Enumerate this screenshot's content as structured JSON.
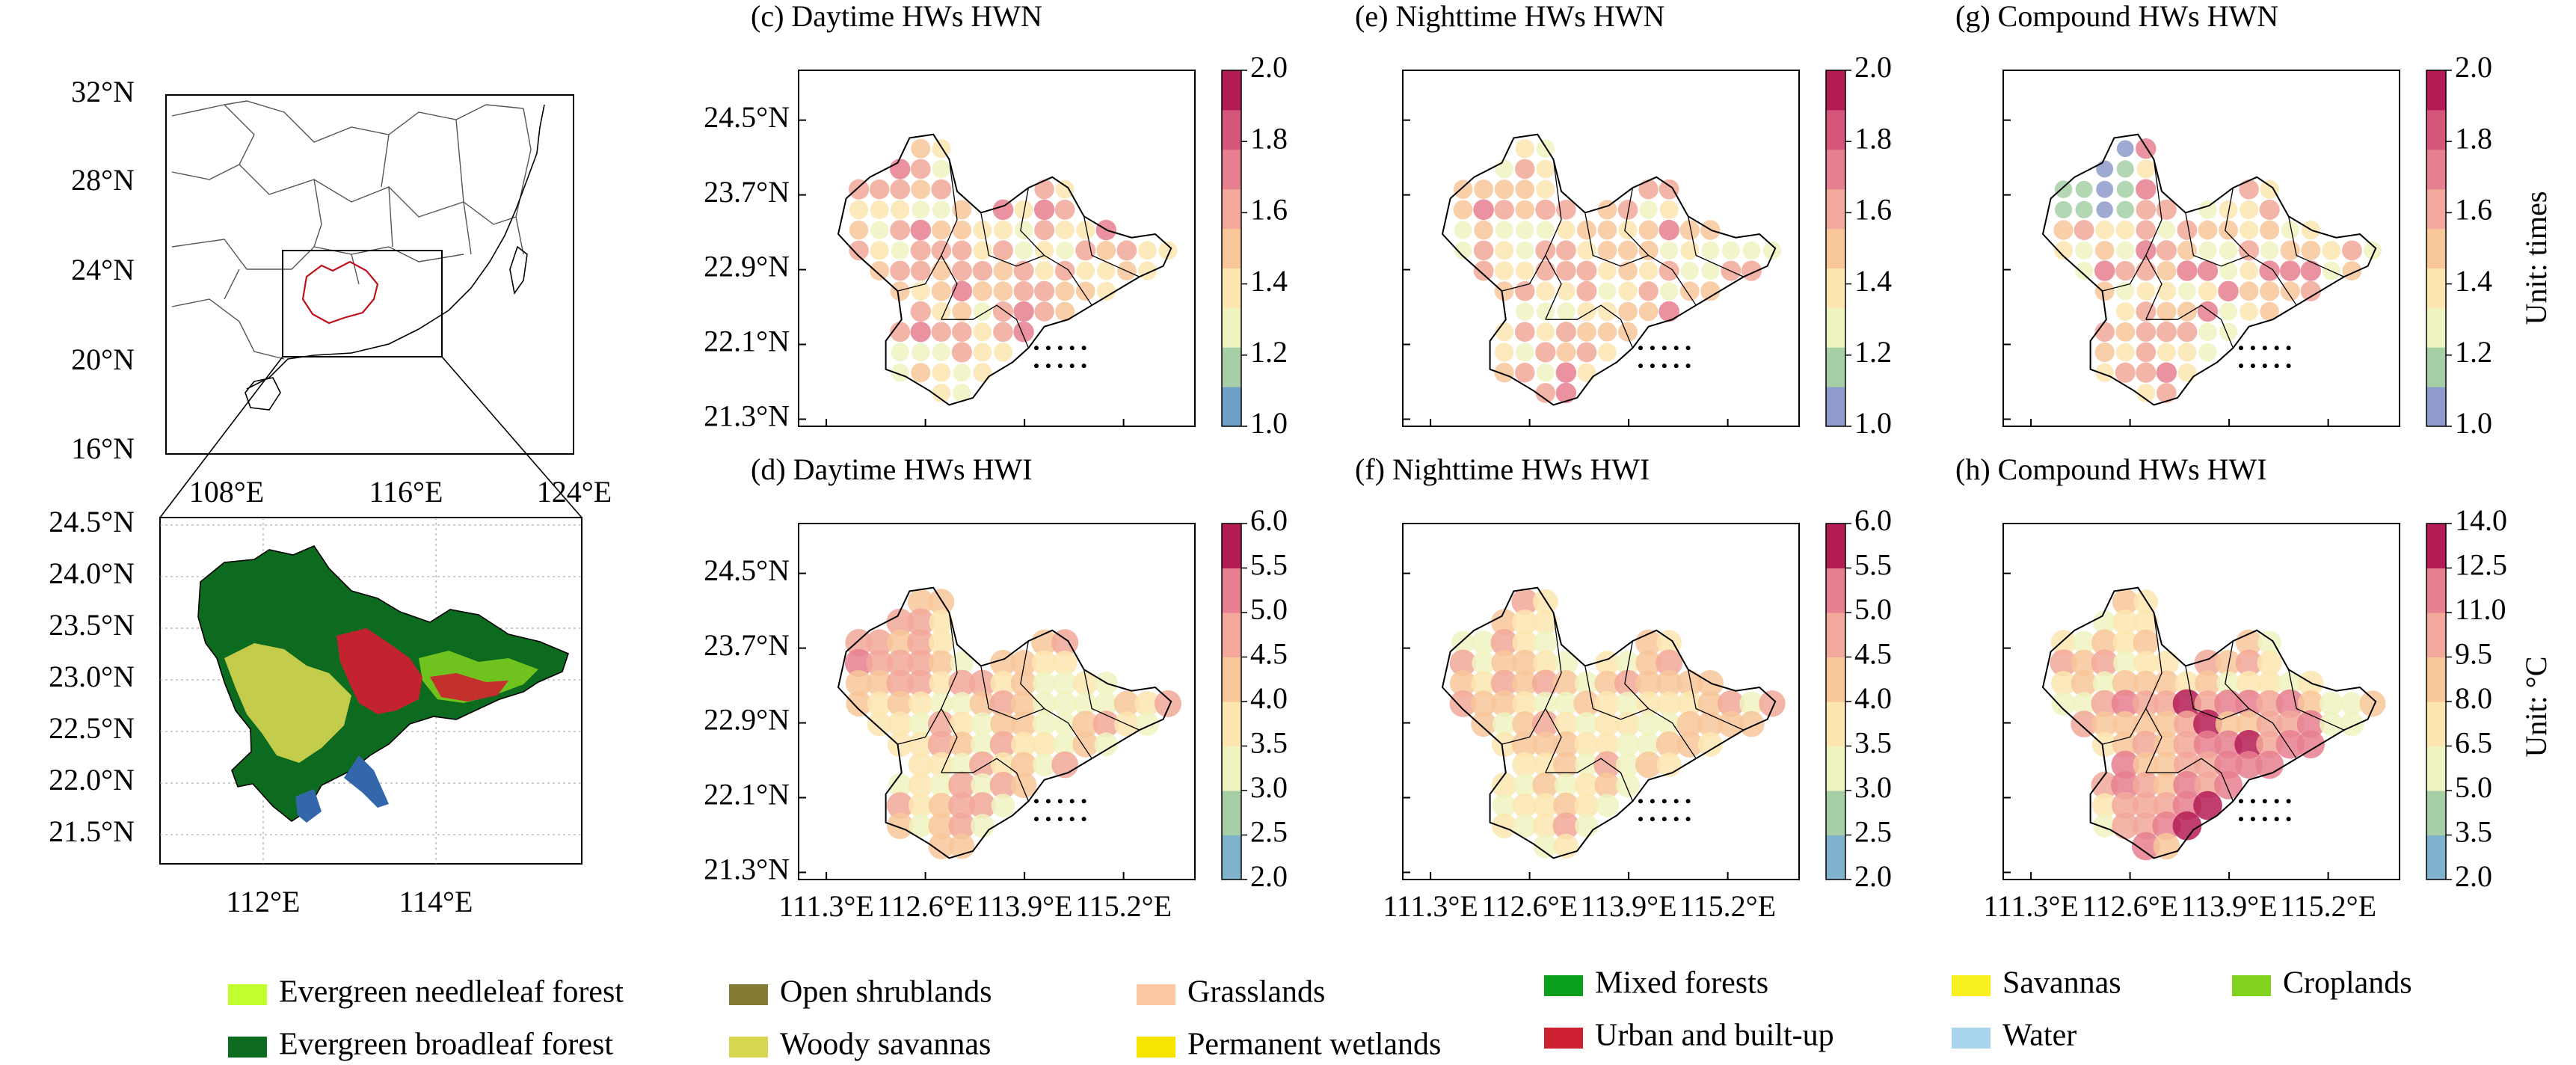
{
  "overview_map": {
    "lat_ticks": [
      "32°N",
      "28°N",
      "24°N",
      "20°N",
      "16°N"
    ],
    "lon_ticks": [
      "108°E",
      "116°E",
      "124°E"
    ]
  },
  "landcover_map": {
    "lat_ticks": [
      "24.5°N",
      "24.0°N",
      "23.5°N",
      "23.0°N",
      "22.5°N",
      "22.0°N",
      "21.5°N"
    ],
    "lon_ticks": [
      "112°E",
      "114°E"
    ]
  },
  "grid_axes": {
    "lat_ticks": [
      "24.5°N",
      "23.7°N",
      "22.9°N",
      "22.1°N",
      "21.3°N"
    ],
    "lon_ticks": [
      "111.3°E",
      "112.6°E",
      "113.9°E",
      "115.2°E"
    ]
  },
  "panels": [
    {
      "id": "c",
      "title": "(c) Daytime HWs HWN",
      "metric": "HWN",
      "type": "day"
    },
    {
      "id": "e",
      "title": "(e) Nighttime HWs HWN",
      "metric": "HWN",
      "type": "night"
    },
    {
      "id": "g",
      "title": "(g) Compound HWs HWN",
      "metric": "HWN",
      "type": "comp"
    },
    {
      "id": "d",
      "title": "(d) Daytime HWs HWI",
      "metric": "HWI",
      "type": "day"
    },
    {
      "id": "f",
      "title": "(f) Nighttime HWs HWI",
      "metric": "HWI",
      "type": "night"
    },
    {
      "id": "h",
      "title": "(h) Compound HWs HWI",
      "metric": "HWI",
      "type": "comp"
    }
  ],
  "colorbars": {
    "hwn_day": {
      "ticks": [
        "2.0",
        "1.8",
        "1.6",
        "1.4",
        "1.2",
        "1.0"
      ],
      "min": 1.0,
      "max": 2.0,
      "colors": [
        "#6fa0c8",
        "#a6cfa6",
        "#eef3c0",
        "#fde6b0",
        "#f8c79a",
        "#f2a89a",
        "#e67f8f",
        "#d4577a",
        "#b41c55"
      ]
    },
    "hwn_night": {
      "ticks": [
        "2.0",
        "1.8",
        "1.6",
        "1.4",
        "1.2",
        "1.0"
      ],
      "min": 1.0,
      "max": 2.0,
      "colors": [
        "#8e9bcb",
        "#a6cfa6",
        "#eef3c0",
        "#fde6b0",
        "#f8c79a",
        "#f2a89a",
        "#e67f8f",
        "#d4577a",
        "#b41c55"
      ]
    },
    "hwn_comp": {
      "ticks": [
        "2.0",
        "1.8",
        "1.6",
        "1.4",
        "1.2",
        "1.0"
      ],
      "min": 1.0,
      "max": 2.0,
      "colors": [
        "#8e9bcb",
        "#a6cfa6",
        "#eef3c0",
        "#fde6b0",
        "#f8c79a",
        "#f2a89a",
        "#e67f8f",
        "#d4577a",
        "#b41c55"
      ]
    },
    "hwi": {
      "ticks": [
        "6.0",
        "5.5",
        "5.0",
        "4.5",
        "4.0",
        "3.5",
        "3.0",
        "2.5",
        "2.0"
      ],
      "min": 2.0,
      "max": 6.0,
      "colors": [
        "#7fb2cc",
        "#a6cfa6",
        "#eef3c0",
        "#fde6b0",
        "#f8c79a",
        "#f2a89a",
        "#e67f8f",
        "#b41c55"
      ]
    },
    "hwi_comp": {
      "ticks": [
        "14.0",
        "12.5",
        "11.0",
        "9.5",
        "8.0",
        "6.5",
        "5.0",
        "3.5",
        "2.0"
      ],
      "min": 2.0,
      "max": 14.0,
      "colors": [
        "#7fb2cc",
        "#a6cfa6",
        "#eef3c0",
        "#fde6b0",
        "#f8c79a",
        "#f2a89a",
        "#e67f8f",
        "#b41c55"
      ]
    }
  },
  "unit_labels": {
    "top": "Unit: times",
    "bottom": "Unit: °C"
  },
  "legend": [
    {
      "label": "Evergreen needleleaf forest",
      "color": "#c2ff2e"
    },
    {
      "label": "Open shrublands",
      "color": "#867b32"
    },
    {
      "label": "Grasslands",
      "color": "#fcc8a4"
    },
    {
      "label": "Mixed forests",
      "color": "#0aa01e"
    },
    {
      "label": "Savannas",
      "color": "#f8f020"
    },
    {
      "label": "Croplands",
      "color": "#82d21e"
    },
    {
      "label": "Evergreen broadleaf forest",
      "color": "#0d6b1f"
    },
    {
      "label": "Woody savannas",
      "color": "#d8d850"
    },
    {
      "label": "Permanent wetlands",
      "color": "#f7e400"
    },
    {
      "label": "Urban and built-up",
      "color": "#cc2030"
    },
    {
      "label": "Water",
      "color": "#a8d4ee"
    }
  ]
}
